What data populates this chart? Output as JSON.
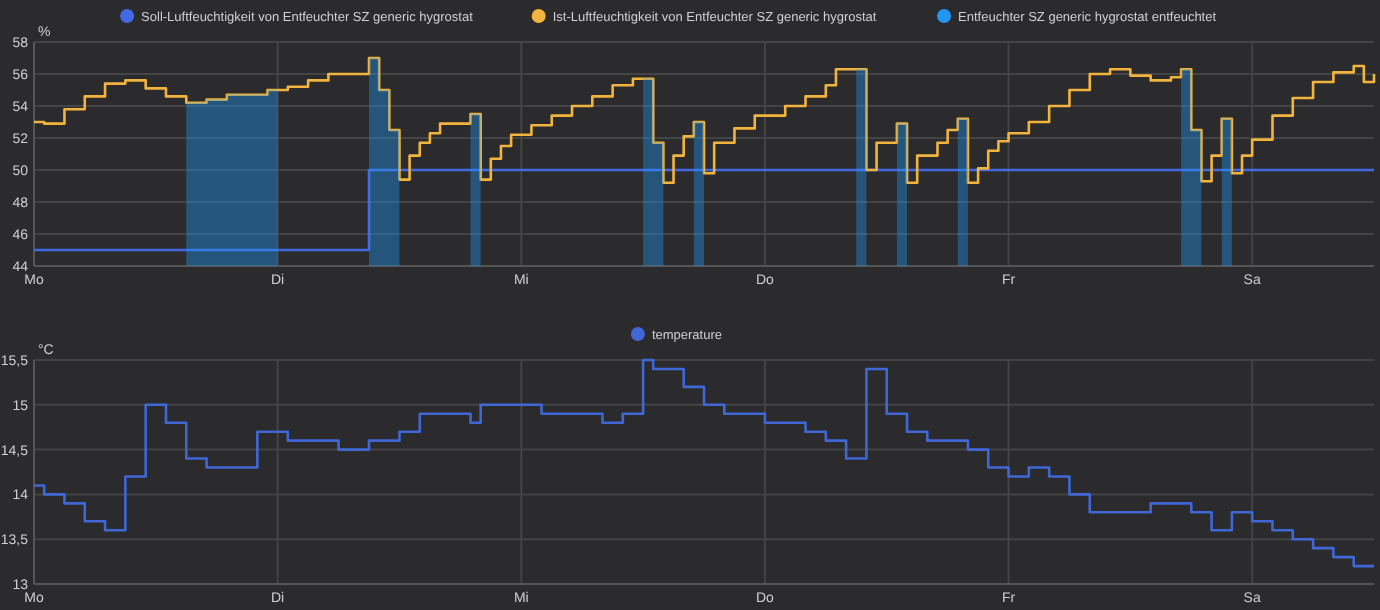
{
  "chart_data": [
    {
      "type": "step",
      "ylabel": "%",
      "ylim": [
        44,
        58
      ],
      "yticks": [
        44,
        46,
        48,
        50,
        52,
        54,
        56,
        58
      ],
      "categories": [
        "Mo",
        null,
        null,
        null,
        null,
        null,
        null,
        null,
        null,
        null,
        null,
        null,
        null,
        null,
        null,
        null,
        null,
        null,
        null,
        null,
        null,
        null,
        null,
        null,
        "Di",
        null,
        null,
        null,
        null,
        null,
        null,
        null,
        null,
        null,
        null,
        null,
        null,
        null,
        null,
        null,
        null,
        null,
        null,
        null,
        null,
        null,
        null,
        null,
        "Mi",
        null,
        null,
        null,
        null,
        null,
        null,
        null,
        null,
        null,
        null,
        null,
        null,
        null,
        null,
        null,
        null,
        null,
        null,
        null,
        null,
        null,
        null,
        null,
        "Do",
        null,
        null,
        null,
        null,
        null,
        null,
        null,
        null,
        null,
        null,
        null,
        null,
        null,
        null,
        null,
        null,
        null,
        null,
        null,
        null,
        null,
        null,
        null,
        "Fr",
        null,
        null,
        null,
        null,
        null,
        null,
        null,
        null,
        null,
        null,
        null,
        null,
        null,
        null,
        null,
        null,
        null,
        null,
        null,
        null,
        null,
        null,
        null,
        "Sa",
        null,
        null,
        null,
        null,
        null,
        null,
        null,
        null,
        null,
        null,
        null,
        null
      ],
      "grid": true,
      "legend": "top",
      "line_style": "solid",
      "series": [
        {
          "name": "Soll-Luftfeuchtigkeit von Entfeuchter SZ generic hygrostat",
          "color": "#4169e1",
          "values": [
            45,
            45,
            45,
            45,
            45,
            45,
            45,
            45,
            45,
            45,
            45,
            45,
            45,
            45,
            45,
            45,
            45,
            45,
            45,
            45,
            45,
            45,
            45,
            45,
            45,
            45,
            45,
            45,
            45,
            45,
            45,
            45,
            45,
            50,
            50,
            50,
            50,
            50,
            50,
            50,
            50,
            50,
            50,
            50,
            50,
            50,
            50,
            50,
            50,
            50,
            50,
            50,
            50,
            50,
            50,
            50,
            50,
            50,
            50,
            50,
            50,
            50,
            50,
            50,
            50,
            50,
            50,
            50,
            50,
            50,
            50,
            50,
            50,
            50,
            50,
            50,
            50,
            50,
            50,
            50,
            50,
            50,
            50,
            50,
            50,
            50,
            50,
            50,
            50,
            50,
            50,
            50,
            50,
            50,
            50,
            50,
            50,
            50,
            50,
            50,
            50,
            50,
            50,
            50,
            50,
            50,
            50,
            50,
            50,
            50,
            50,
            50,
            50,
            50,
            50,
            50,
            50,
            50,
            50,
            50,
            50,
            50,
            50,
            50,
            50,
            50,
            50,
            50,
            50,
            50,
            50,
            50,
            50
          ]
        },
        {
          "name": "Ist-Luftfeuchtigkeit von Entfeuchter SZ generic hygrostat",
          "color": "#f2b43c",
          "values": [
            53.0,
            52.9,
            52.9,
            53.8,
            53.8,
            54.6,
            54.6,
            55.4,
            55.4,
            55.6,
            55.6,
            55.1,
            55.1,
            54.6,
            54.6,
            54.2,
            54.2,
            54.4,
            54.4,
            54.7,
            54.7,
            54.7,
            54.7,
            55.0,
            55.0,
            55.2,
            55.2,
            55.6,
            55.6,
            56.0,
            56.0,
            56.0,
            56.0,
            57.0,
            55.0,
            52.5,
            49.4,
            50.9,
            51.7,
            52.3,
            52.9,
            52.9,
            52.9,
            53.5,
            49.4,
            50.7,
            51.5,
            52.2,
            52.2,
            52.8,
            52.8,
            53.4,
            53.4,
            54.0,
            54.0,
            54.6,
            54.6,
            55.3,
            55.3,
            55.7,
            55.7,
            51.7,
            49.2,
            50.9,
            52.1,
            53.0,
            49.8,
            51.7,
            51.7,
            52.6,
            52.6,
            53.4,
            53.4,
            53.4,
            54.0,
            54.0,
            54.6,
            54.6,
            55.3,
            56.3,
            56.3,
            56.3,
            50.0,
            51.7,
            51.7,
            52.9,
            49.2,
            50.9,
            50.9,
            51.7,
            52.5,
            53.2,
            49.2,
            50.1,
            51.2,
            51.8,
            52.3,
            52.3,
            53.0,
            53.0,
            54.0,
            54.0,
            55.0,
            55.0,
            56.0,
            56.0,
            56.3,
            56.3,
            55.9,
            55.9,
            55.6,
            55.6,
            55.8,
            56.3,
            52.5,
            49.3,
            50.9,
            53.2,
            49.8,
            50.9,
            51.9,
            51.9,
            53.4,
            53.4,
            54.5,
            54.5,
            55.5,
            55.5,
            56.1,
            56.1,
            56.5,
            55.5,
            56.0
          ]
        },
        {
          "name": "Entfeuchter SZ generic hygrostat entfeuchtet",
          "type": "area",
          "color": "#2196f3",
          "values": [
            null,
            null,
            null,
            null,
            null,
            null,
            null,
            null,
            null,
            null,
            null,
            null,
            null,
            null,
            null,
            54.2,
            54.2,
            54.4,
            54.4,
            54.7,
            54.7,
            54.7,
            54.7,
            55.0,
            55.0,
            null,
            null,
            null,
            null,
            null,
            null,
            null,
            null,
            57.0,
            55.0,
            52.5,
            49.4,
            null,
            null,
            null,
            null,
            null,
            null,
            53.5,
            49.4,
            null,
            null,
            null,
            null,
            null,
            null,
            null,
            null,
            null,
            null,
            null,
            null,
            null,
            null,
            null,
            55.7,
            51.7,
            49.2,
            null,
            null,
            53.0,
            49.8,
            null,
            null,
            null,
            null,
            null,
            null,
            null,
            null,
            null,
            null,
            null,
            null,
            null,
            null,
            56.3,
            50.0,
            null,
            null,
            52.9,
            49.2,
            null,
            null,
            null,
            null,
            53.2,
            49.2,
            null,
            null,
            null,
            null,
            null,
            null,
            null,
            null,
            null,
            null,
            null,
            null,
            null,
            null,
            null,
            null,
            null,
            null,
            null,
            null,
            56.3,
            52.5,
            49.3,
            null,
            53.2,
            49.8,
            null,
            null,
            null,
            null,
            null,
            null,
            null,
            null,
            null,
            null,
            null,
            null,
            null,
            null
          ]
        }
      ]
    },
    {
      "type": "step",
      "ylabel": "°C",
      "ylim": [
        13,
        15.5
      ],
      "yticks": [
        13,
        {
          "value": 13.5,
          "label": "13,5"
        },
        14,
        {
          "value": 14.5,
          "label": "14,5"
        },
        15,
        {
          "value": 15.5,
          "label": "15,5"
        }
      ],
      "categories": [
        "Mo",
        null,
        null,
        null,
        null,
        null,
        null,
        null,
        null,
        null,
        null,
        null,
        null,
        null,
        null,
        null,
        null,
        null,
        null,
        null,
        null,
        null,
        null,
        null,
        "Di",
        null,
        null,
        null,
        null,
        null,
        null,
        null,
        null,
        null,
        null,
        null,
        null,
        null,
        null,
        null,
        null,
        null,
        null,
        null,
        null,
        null,
        null,
        null,
        "Mi",
        null,
        null,
        null,
        null,
        null,
        null,
        null,
        null,
        null,
        null,
        null,
        null,
        null,
        null,
        null,
        null,
        null,
        null,
        null,
        null,
        null,
        null,
        null,
        "Do",
        null,
        null,
        null,
        null,
        null,
        null,
        null,
        null,
        null,
        null,
        null,
        null,
        null,
        null,
        null,
        null,
        null,
        null,
        null,
        null,
        null,
        null,
        null,
        "Fr",
        null,
        null,
        null,
        null,
        null,
        null,
        null,
        null,
        null,
        null,
        null,
        null,
        null,
        null,
        null,
        null,
        null,
        null,
        null,
        null,
        null,
        null,
        null,
        "Sa",
        null,
        null,
        null,
        null,
        null,
        null,
        null,
        null,
        null,
        null,
        null,
        null
      ],
      "grid": true,
      "legend": "top",
      "line_style": "solid",
      "series": [
        {
          "name": "temperature",
          "color": "#3f67d6",
          "values": [
            14.1,
            14.0,
            14.0,
            13.9,
            13.9,
            13.7,
            13.7,
            13.6,
            13.6,
            14.2,
            14.2,
            15.0,
            15.0,
            14.8,
            14.8,
            14.4,
            14.4,
            14.3,
            14.3,
            14.3,
            14.3,
            14.3,
            14.7,
            14.7,
            14.7,
            14.6,
            14.6,
            14.6,
            14.6,
            14.6,
            14.5,
            14.5,
            14.5,
            14.6,
            14.6,
            14.6,
            14.7,
            14.7,
            14.9,
            14.9,
            14.9,
            14.9,
            14.9,
            14.8,
            15.0,
            15.0,
            15.0,
            15.0,
            15.0,
            15.0,
            14.9,
            14.9,
            14.9,
            14.9,
            14.9,
            14.9,
            14.8,
            14.8,
            14.9,
            14.9,
            15.5,
            15.4,
            15.4,
            15.4,
            15.2,
            15.2,
            15.0,
            15.0,
            14.9,
            14.9,
            14.9,
            14.9,
            14.8,
            14.8,
            14.8,
            14.8,
            14.7,
            14.7,
            14.6,
            14.6,
            14.4,
            14.4,
            15.4,
            15.4,
            14.9,
            14.9,
            14.7,
            14.7,
            14.6,
            14.6,
            14.6,
            14.6,
            14.5,
            14.5,
            14.3,
            14.3,
            14.2,
            14.2,
            14.3,
            14.3,
            14.2,
            14.2,
            14.0,
            14.0,
            13.8,
            13.8,
            13.8,
            13.8,
            13.8,
            13.8,
            13.9,
            13.9,
            13.9,
            13.9,
            13.8,
            13.8,
            13.6,
            13.6,
            13.8,
            13.8,
            13.7,
            13.7,
            13.6,
            13.6,
            13.5,
            13.5,
            13.4,
            13.4,
            13.3,
            13.3,
            13.2,
            13.2,
            13.2
          ]
        }
      ]
    }
  ]
}
